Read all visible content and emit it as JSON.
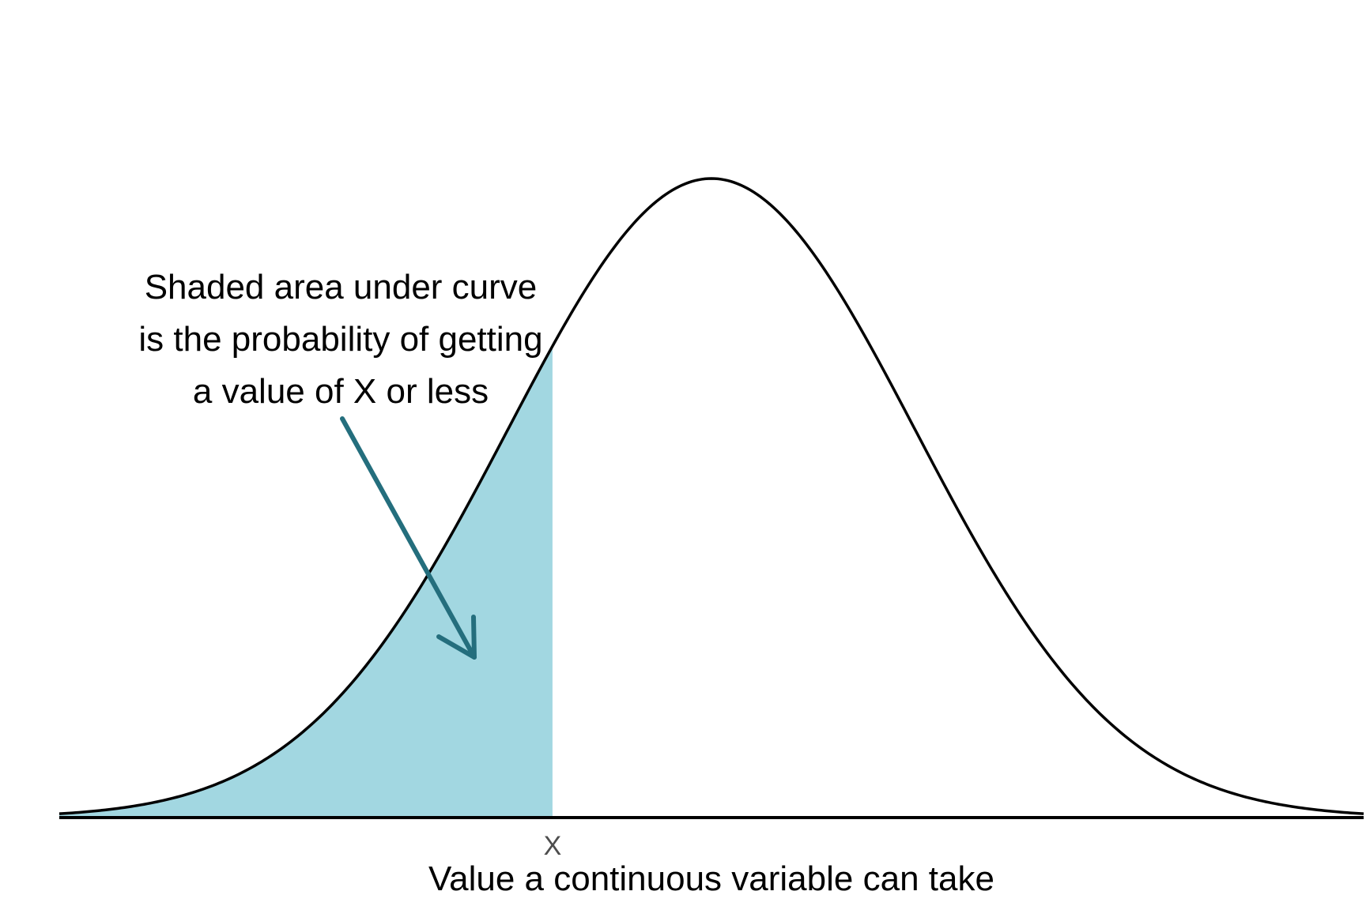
{
  "colors": {
    "background": "#ffffff",
    "shade": "#a2d7e1",
    "curve": "#000000",
    "arrow": "#246e7d",
    "tick_text": "#4d4d4d"
  },
  "chart_data": {
    "type": "area",
    "distribution": "normal",
    "mean": 0,
    "sd": 1,
    "xlim": [
      -3.2,
      3.2
    ],
    "shaded_below": -0.78,
    "x_ticks": [
      {
        "value": -0.78,
        "label": "X"
      }
    ],
    "xlabel": "Value a continuous variable can take",
    "ylabel": "",
    "grid": false,
    "annotation": {
      "lines": [
        "Shaded area under curve",
        "is the probability of getting",
        "a value of X or less"
      ]
    }
  }
}
